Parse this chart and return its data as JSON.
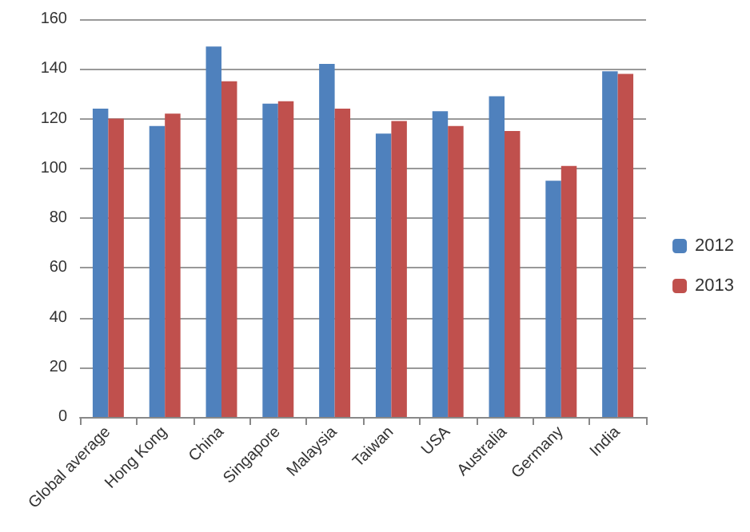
{
  "chart_data": {
    "type": "bar",
    "categories": [
      "Global average",
      "Hong Kong",
      "China",
      "Singapore",
      "Malaysia",
      "Taiwan",
      "USA",
      "Australia",
      "Germany",
      "India"
    ],
    "series": [
      {
        "name": "2012",
        "color": "#4f81bd",
        "values": [
          124,
          117,
          149,
          126,
          142,
          114,
          123,
          129,
          95,
          139
        ]
      },
      {
        "name": "2013",
        "color": "#c0504d",
        "values": [
          120,
          122,
          135,
          127,
          124,
          119,
          117,
          115,
          101,
          138
        ]
      }
    ],
    "ylim": [
      0,
      160
    ],
    "yticks": [
      0,
      20,
      40,
      60,
      80,
      100,
      120,
      140,
      160
    ],
    "grid": "y",
    "legend": "right"
  }
}
